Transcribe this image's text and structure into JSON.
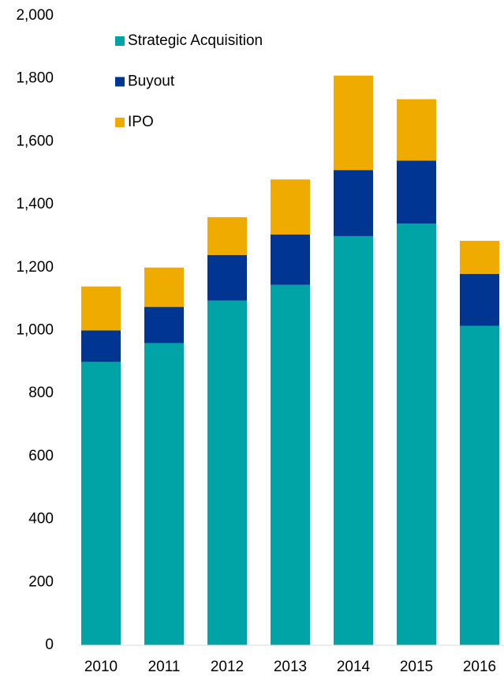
{
  "chart_data": {
    "type": "stacked_bar",
    "categories": [
      "2010",
      "2011",
      "2012",
      "2013",
      "2014",
      "2015",
      "2016"
    ],
    "series": [
      {
        "name": "Strategic Acquisition",
        "color": "#00a4a6",
        "values": [
          900,
          960,
          1095,
          1145,
          1300,
          1340,
          1015
        ]
      },
      {
        "name": "Buyout",
        "color": "#003591",
        "values": [
          100,
          115,
          145,
          160,
          210,
          200,
          165
        ]
      },
      {
        "name": "IPO",
        "color": "#f0ab00",
        "values": [
          140,
          125,
          120,
          175,
          300,
          195,
          105
        ]
      }
    ],
    "ylim": [
      0,
      2000
    ],
    "yticks": [
      0,
      200,
      400,
      600,
      800,
      {
        "value": 1000,
        "label": "1,000"
      },
      {
        "value": 1200,
        "label": "1,200"
      },
      {
        "value": 1400,
        "label": "1,400"
      },
      {
        "value": 1600,
        "label": "1,600"
      },
      {
        "value": 1800,
        "label": "1,800"
      },
      {
        "value": 2000,
        "label": "2,000"
      }
    ],
    "grid": false,
    "legend": "upper left"
  }
}
